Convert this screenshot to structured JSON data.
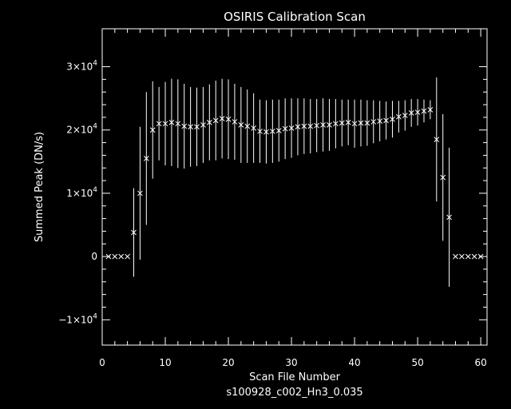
{
  "chart_data": {
    "type": "scatter",
    "title": "OSIRIS Calibration Scan",
    "xlabel": "Scan File Number",
    "ylabel": "Summed Peak (DN/s)",
    "footer": "s100928_c002_Hn3_0.035",
    "xlim": [
      0,
      61
    ],
    "ylim": [
      -14000,
      36000
    ],
    "x_ticks": [
      0,
      10,
      20,
      30,
      40,
      50,
      60
    ],
    "x_tick_labels": [
      "0",
      "10",
      "20",
      "30",
      "40",
      "50",
      "60"
    ],
    "y_ticks": [
      -10000,
      0,
      10000,
      20000,
      30000
    ],
    "y_tick_labels": [
      {
        "base": "−1×10",
        "exp": "4"
      },
      {
        "base": "0",
        "exp": ""
      },
      {
        "base": "1×10",
        "exp": "4"
      },
      {
        "base": "2×10",
        "exp": "4"
      },
      {
        "base": "3×10",
        "exp": "4"
      }
    ],
    "grid": false,
    "marker": "x",
    "series": [
      {
        "x": [
          1,
          2,
          3,
          4,
          5,
          6,
          7,
          8,
          9,
          10,
          11,
          12,
          13,
          14,
          15,
          16,
          17,
          18,
          19,
          20,
          21,
          22,
          23,
          24,
          25,
          26,
          27,
          28,
          29,
          30,
          31,
          32,
          33,
          34,
          35,
          36,
          37,
          38,
          39,
          40,
          41,
          42,
          43,
          44,
          45,
          46,
          47,
          48,
          49,
          50,
          51,
          52,
          53,
          54,
          55,
          56,
          57,
          58,
          59,
          60
        ],
        "y": [
          0,
          0,
          0,
          0,
          3800,
          10000,
          15500,
          20000,
          21000,
          21000,
          21200,
          21000,
          20600,
          20500,
          20500,
          20800,
          21200,
          21500,
          21800,
          21700,
          21300,
          20800,
          20600,
          20300,
          19800,
          19700,
          19800,
          19900,
          20200,
          20300,
          20500,
          20600,
          20600,
          20700,
          20800,
          20800,
          21000,
          21100,
          21200,
          21000,
          21100,
          21100,
          21300,
          21400,
          21500,
          21700,
          22100,
          22300,
          22700,
          22800,
          23000,
          23200,
          18500,
          12500,
          6200,
          0,
          0,
          0,
          0,
          0
        ],
        "error": [
          0,
          0,
          0,
          0,
          7000,
          10500,
          10500,
          7700,
          5800,
          6600,
          6900,
          7000,
          6700,
          6300,
          6200,
          6000,
          6000,
          6300,
          6300,
          6300,
          6000,
          6000,
          5800,
          5500,
          5000,
          5000,
          5000,
          4900,
          4800,
          4700,
          4500,
          4400,
          4300,
          4200,
          4200,
          4100,
          3900,
          3700,
          3600,
          3800,
          3700,
          3600,
          3400,
          3200,
          3000,
          2900,
          2500,
          2400,
          2200,
          2100,
          1800,
          1500,
          9800,
          10000,
          11000,
          0,
          0,
          0,
          0,
          0
        ]
      }
    ]
  }
}
